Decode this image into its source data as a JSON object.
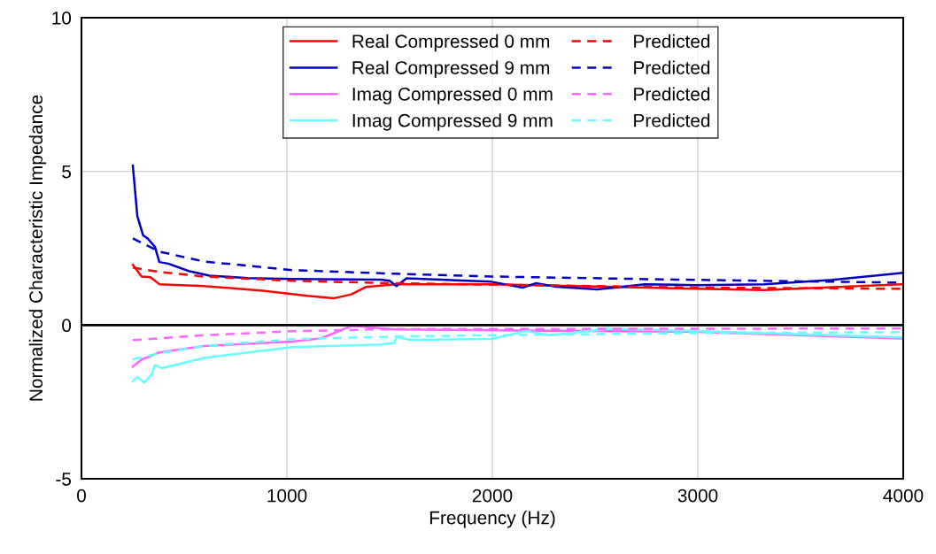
{
  "chart_data": {
    "type": "line",
    "xlabel": "Frequency (Hz)",
    "ylabel": "Normalized Characteristic Impedance",
    "xlim": [
      0,
      4000
    ],
    "xticks": [
      0,
      1000,
      2000,
      3000,
      4000
    ],
    "ylim": [
      -5,
      10
    ],
    "yticks": [
      -5,
      0,
      5,
      10
    ],
    "grid": true,
    "legend": "top",
    "line_style": "solid",
    "marker": "none",
    "ref_lines": [
      {
        "axis": "y",
        "value": 0,
        "color": "#000000"
      }
    ],
    "series": [
      {
        "name": "Real Compressed 0 mm",
        "color": "#ff0000",
        "x": [
          250,
          293,
          336,
          379,
          595,
          882,
          1098,
          1227,
          1313,
          1384,
          1529,
          1996,
          2991,
          3323,
          4000
        ],
        "values": [
          1.96,
          1.58,
          1.56,
          1.33,
          1.27,
          1.12,
          0.95,
          0.87,
          1.0,
          1.24,
          1.33,
          1.33,
          1.18,
          1.14,
          1.33
        ]
      },
      {
        "name": "Real Compressed 9 mm",
        "color": "#0000c0",
        "x": [
          250,
          272,
          300,
          322,
          358,
          379,
          422,
          522,
          624,
          810,
          1026,
          1457,
          1500,
          1533,
          1582,
          1996,
          2147,
          2211,
          2311,
          2511,
          2741,
          2991,
          3323,
          3655,
          4000
        ],
        "values": [
          5.19,
          3.54,
          2.92,
          2.82,
          2.54,
          2.05,
          2.0,
          1.76,
          1.61,
          1.53,
          1.5,
          1.48,
          1.44,
          1.27,
          1.52,
          1.41,
          1.22,
          1.36,
          1.25,
          1.16,
          1.33,
          1.3,
          1.33,
          1.47,
          1.7
        ]
      },
      {
        "name": "Imag Compressed 0 mm",
        "color": "#ff66ff",
        "x": [
          250,
          293,
          379,
          595,
          1026,
          1168,
          1313,
          1384,
          1529,
          1996,
          2991,
          4000
        ],
        "values": [
          -1.35,
          -1.12,
          -0.89,
          -0.68,
          -0.54,
          -0.43,
          -0.03,
          -0.06,
          -0.14,
          -0.17,
          -0.22,
          -0.44
        ]
      },
      {
        "name": "Imag Compressed 9 mm",
        "color": "#66ffff",
        "x": [
          250,
          272,
          306,
          343,
          358,
          392,
          595,
          1026,
          1457,
          1522,
          1533,
          1599,
          1996,
          2164,
          2280,
          2578,
          2991,
          4000
        ],
        "values": [
          -1.83,
          -1.69,
          -1.87,
          -1.59,
          -1.3,
          -1.4,
          -1.07,
          -0.72,
          -0.63,
          -0.58,
          -0.39,
          -0.48,
          -0.45,
          -0.19,
          -0.33,
          -0.12,
          -0.19,
          -0.4
        ]
      },
      {
        "name": "Predicted",
        "color": "#ff0000",
        "line_style": "dashed",
        "x": [
          250,
          379,
          595,
          1026,
          1529,
          2991,
          4000
        ],
        "values": [
          1.87,
          1.73,
          1.58,
          1.44,
          1.36,
          1.22,
          1.18
        ]
      },
      {
        "name": "Predicted",
        "color": "#0000c0",
        "line_style": "dashed",
        "x": [
          250,
          379,
          595,
          1026,
          1529,
          1996,
          2991,
          4000
        ],
        "values": [
          2.82,
          2.39,
          2.07,
          1.79,
          1.67,
          1.58,
          1.47,
          1.38
        ]
      },
      {
        "name": "Predicted",
        "color": "#ff66ff",
        "line_style": "dashed",
        "x": [
          250,
          595,
          1026,
          1529,
          2991,
          4000
        ],
        "values": [
          -0.49,
          -0.33,
          -0.2,
          -0.13,
          -0.12,
          -0.11
        ]
      },
      {
        "name": "Predicted",
        "color": "#66ffff",
        "line_style": "dashed",
        "x": [
          250,
          379,
          595,
          1026,
          1529,
          1996,
          2991,
          4000
        ],
        "values": [
          -1.11,
          -0.92,
          -0.68,
          -0.46,
          -0.37,
          -0.33,
          -0.26,
          -0.23
        ]
      }
    ]
  }
}
